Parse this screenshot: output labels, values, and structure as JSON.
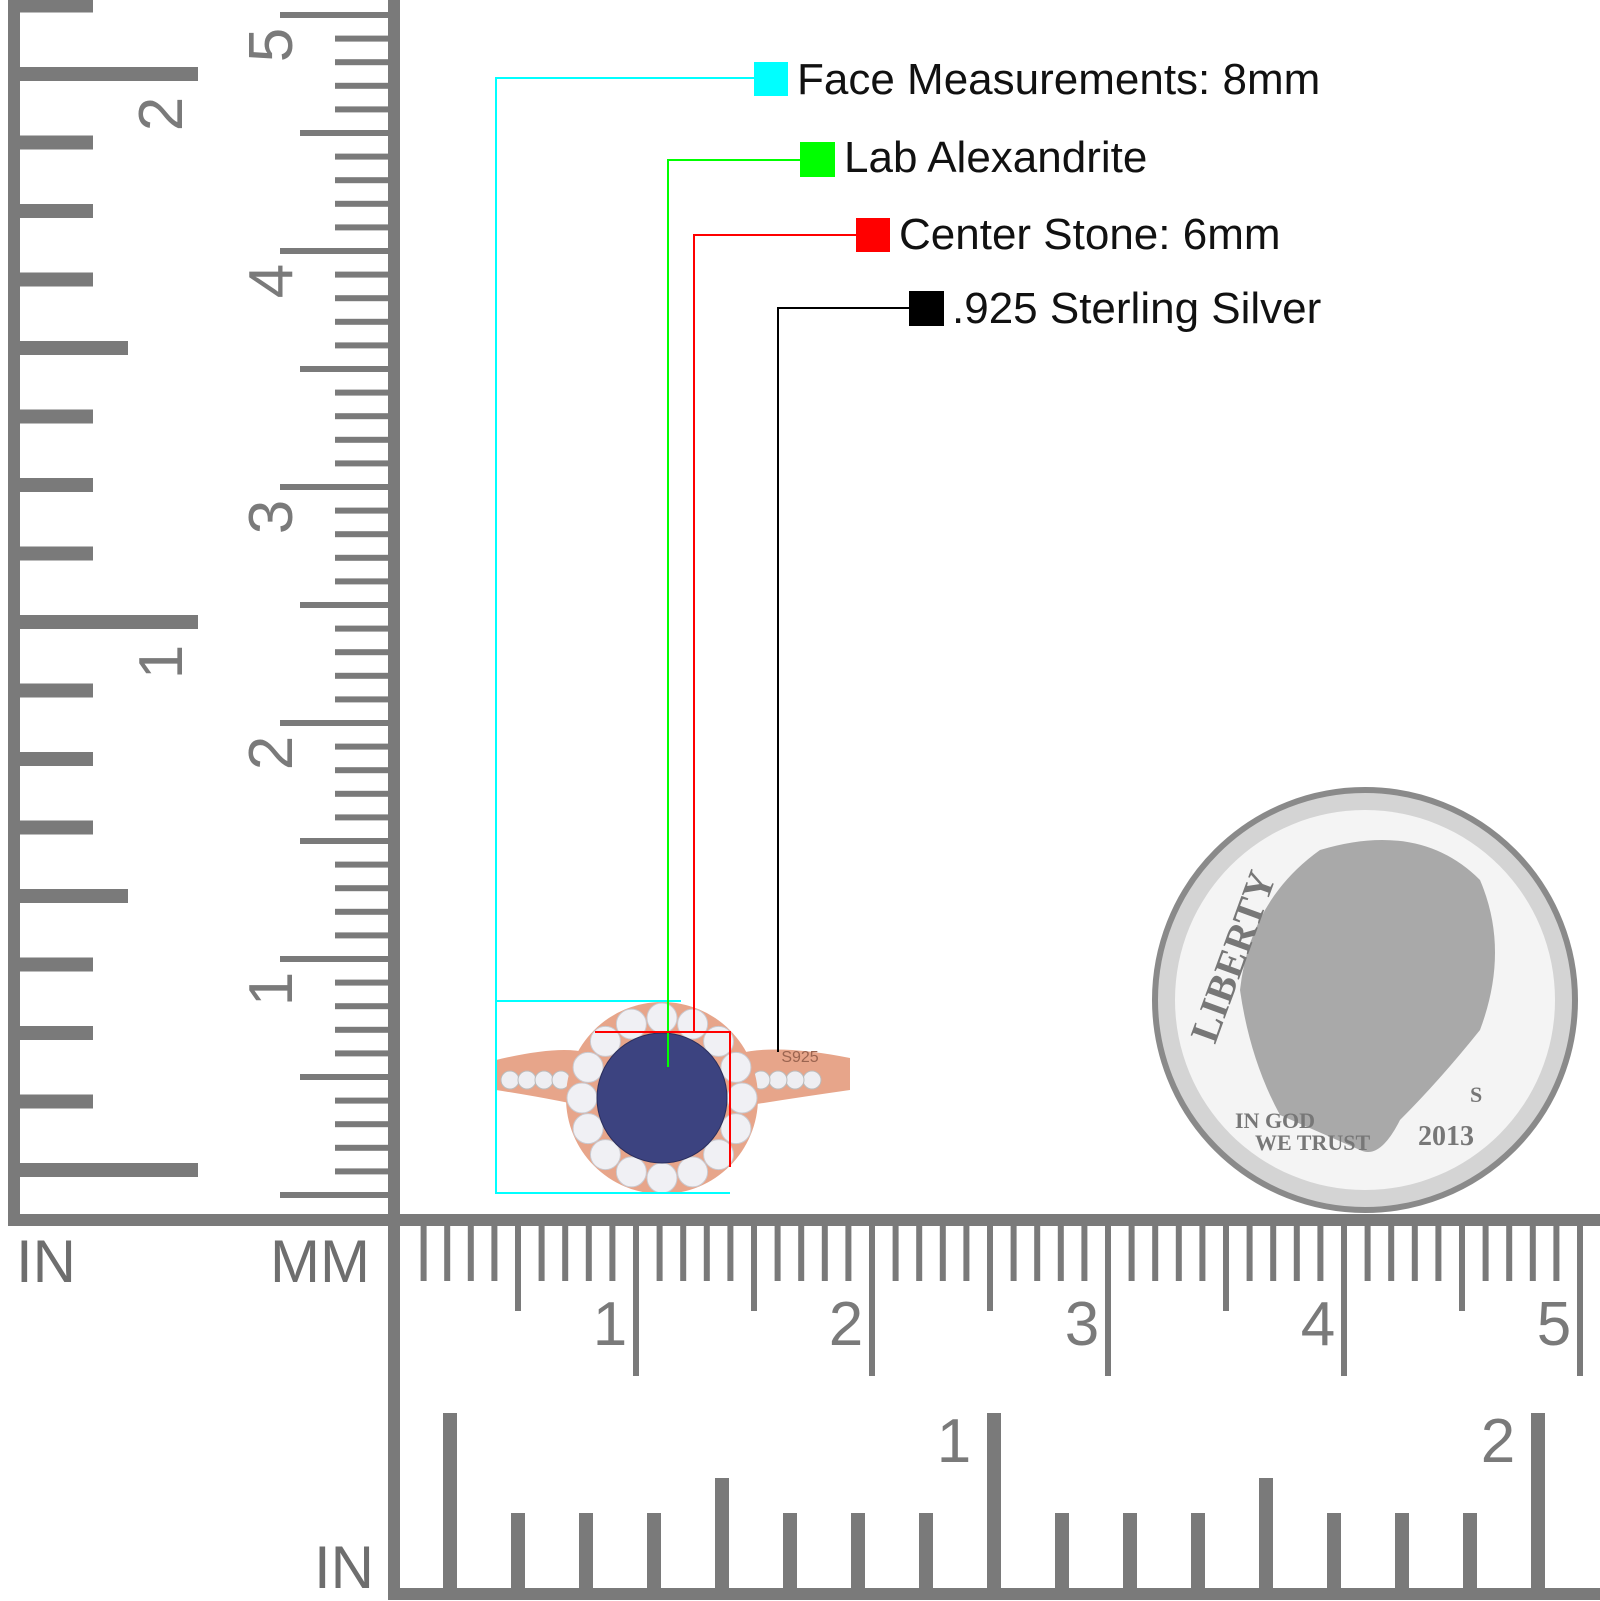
{
  "callouts": [
    {
      "label": "Face Measurements: 8mm",
      "color": "#00ffff"
    },
    {
      "label": "Lab Alexandrite",
      "color": "#00ff00"
    },
    {
      "label": "Center Stone: 6mm",
      "color": "#ff0000"
    },
    {
      "label": ".925 Sterling Silver",
      "color": "#000000"
    }
  ],
  "rulers": {
    "left_inch_label": "IN",
    "left_mm_label": "MM",
    "bottom_inch_label": "IN",
    "cm_numbers": [
      "1",
      "2",
      "3",
      "4",
      "5"
    ],
    "inch_numbers": [
      "1",
      "2"
    ],
    "color": "#7a7a7a"
  },
  "ring": {
    "metal_color": "#e7a58a",
    "stone_color": "#3c4380",
    "stamp": "S925"
  },
  "coin": {
    "legend_top": "LIBERTY",
    "motto_1": "IN GOD",
    "motto_2": "WE TRUST",
    "year": "2013",
    "mint_mark": "S"
  }
}
